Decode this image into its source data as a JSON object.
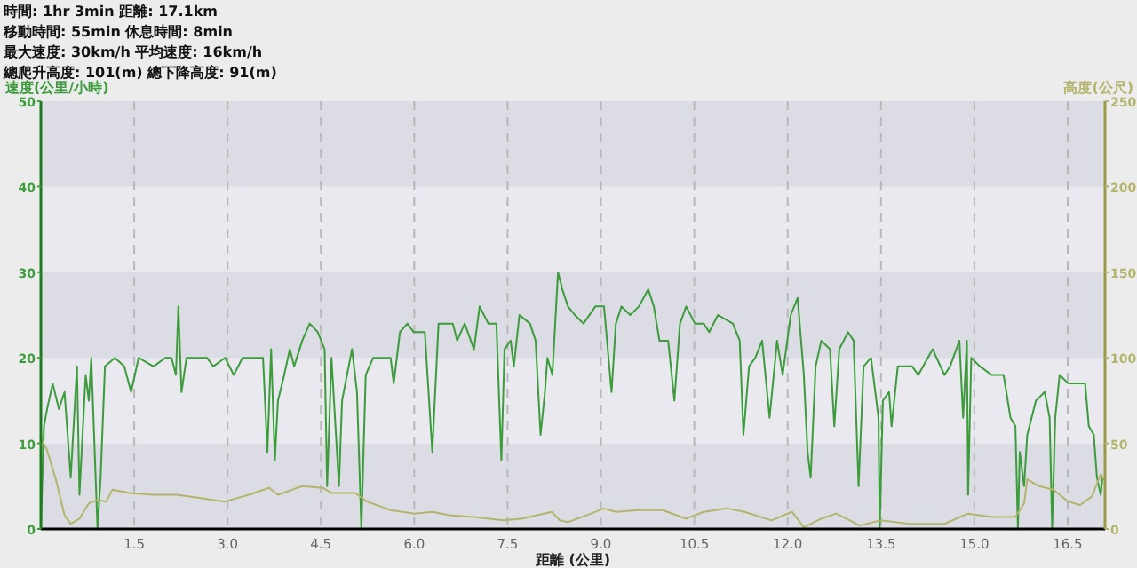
{
  "chart_data": {
    "type": "line",
    "annotations": [
      "時間: 1hr 3min  距離: 17.1km",
      "移動時間: 55min  休息時間: 8min",
      "最大速度: 30km/h  平均速度: 16km/h",
      "總爬升高度: 101(m)  總下降高度: 91(m)"
    ],
    "xlabel": "距離 (公里)",
    "ylabel": "速度(公里/小時)",
    "y2label": "高度(公尺)",
    "xlim": [
      0,
      17.1
    ],
    "xticks": [
      1.5,
      {
        "value": 3,
        "label": "3.0"
      },
      4.5,
      {
        "value": 6,
        "label": "6.0"
      },
      7.5,
      {
        "value": 9,
        "label": "9.0"
      },
      10.5,
      {
        "value": 12,
        "label": "12.0"
      },
      13.5,
      {
        "value": 15,
        "label": "15.0"
      },
      16.5
    ],
    "ylim": [
      0,
      50
    ],
    "yticks": [
      0,
      10,
      20,
      30,
      40,
      50
    ],
    "y2lim": [
      0,
      250
    ],
    "y2ticks": [
      0,
      50,
      100,
      150,
      200,
      250
    ],
    "grid": true,
    "marker": "none",
    "line_style": "solid",
    "series": [
      {
        "color": "#3c9c3c",
        "x": [
          0.0,
          0.05,
          0.1,
          0.19,
          0.29,
          0.38,
          0.48,
          0.58,
          0.62,
          0.72,
          0.77,
          0.81,
          0.89,
          0.91,
          0.96,
          1.03,
          1.19,
          1.34,
          1.45,
          1.57,
          1.81,
          2.0,
          2.1,
          2.17,
          2.21,
          2.26,
          2.34,
          2.67,
          2.77,
          2.96,
          3.1,
          3.24,
          3.57,
          3.64,
          3.7,
          3.76,
          3.81,
          3.91,
          4.0,
          4.07,
          4.2,
          4.32,
          4.45,
          4.56,
          4.6,
          4.67,
          4.79,
          4.84,
          5.0,
          5.08,
          5.15,
          5.22,
          5.34,
          5.62,
          5.67,
          5.77,
          5.89,
          5.99,
          6.17,
          6.29,
          6.39,
          6.62,
          6.69,
          6.81,
          6.96,
          7.05,
          7.19,
          7.32,
          7.4,
          7.45,
          7.55,
          7.6,
          7.69,
          7.86,
          7.95,
          8.03,
          8.1,
          8.14,
          8.22,
          8.31,
          8.38,
          8.47,
          8.58,
          8.72,
          8.91,
          9.05,
          9.17,
          9.24,
          9.33,
          9.47,
          9.61,
          9.76,
          9.85,
          9.94,
          10.08,
          10.18,
          10.27,
          10.37,
          10.51,
          10.65,
          10.74,
          10.88,
          11.12,
          11.23,
          11.29,
          11.38,
          11.48,
          11.59,
          11.71,
          11.83,
          11.92,
          12.05,
          12.16,
          12.26,
          12.32,
          12.37,
          12.45,
          12.54,
          12.68,
          12.75,
          12.83,
          12.97,
          13.06,
          13.14,
          13.22,
          13.34,
          13.46,
          13.48,
          13.53,
          13.63,
          13.67,
          13.77,
          14.0,
          14.1,
          14.33,
          14.52,
          14.61,
          14.76,
          14.82,
          14.88,
          14.9,
          14.95,
          15.09,
          15.28,
          15.47,
          15.58,
          15.66,
          15.7,
          15.73,
          15.8,
          15.85,
          15.99,
          16.13,
          16.21,
          16.25,
          16.3,
          16.37,
          16.51,
          16.78,
          16.84,
          16.92,
          16.97,
          17.03,
          17.06
        ],
        "values": [
          0,
          12,
          14,
          17,
          14,
          16,
          6,
          19,
          4,
          18,
          15,
          20,
          4,
          0,
          6,
          19,
          20,
          19,
          16,
          20,
          19,
          20,
          20,
          18,
          26,
          16,
          20,
          20,
          19,
          20,
          18,
          20,
          20,
          9,
          21,
          8,
          15,
          18,
          21,
          19,
          22,
          24,
          23,
          21,
          5,
          20,
          5,
          15,
          21,
          16,
          0,
          18,
          20,
          20,
          17,
          23,
          24,
          23,
          23,
          9,
          24,
          24,
          22,
          24,
          21,
          26,
          24,
          24,
          8,
          21,
          22,
          19,
          25,
          24,
          22,
          11,
          16,
          20,
          18,
          30,
          28,
          26,
          25,
          24,
          26,
          26,
          16,
          24,
          26,
          25,
          26,
          28,
          26,
          22,
          22,
          15,
          24,
          26,
          24,
          24,
          23,
          25,
          24,
          22,
          11,
          19,
          20,
          22,
          13,
          22,
          18,
          25,
          27,
          18,
          9,
          6,
          19,
          22,
          21,
          12,
          21,
          23,
          22,
          5,
          19,
          20,
          13,
          0,
          15,
          16,
          12,
          19,
          19,
          18,
          21,
          18,
          19,
          22,
          13,
          22,
          4,
          20,
          19,
          18,
          18,
          13,
          12,
          0,
          9,
          5,
          11,
          15,
          16,
          13,
          0,
          13,
          18,
          17,
          17,
          12,
          11,
          6,
          4,
          6
        ]
      },
      {
        "color": "#b4b46c",
        "axis": "y2",
        "x": [
          0.0,
          0.1,
          0.24,
          0.38,
          0.48,
          0.62,
          0.77,
          0.91,
          1.05,
          1.15,
          1.43,
          1.81,
          2.19,
          2.57,
          2.96,
          3.34,
          3.67,
          3.81,
          4.2,
          4.53,
          4.67,
          5.05,
          5.24,
          5.62,
          6.0,
          6.29,
          6.57,
          6.96,
          7.43,
          7.72,
          8.21,
          8.34,
          8.47,
          8.77,
          9.05,
          9.24,
          9.61,
          9.99,
          10.37,
          10.65,
          11.03,
          11.31,
          11.74,
          12.07,
          12.26,
          12.54,
          12.78,
          13.16,
          13.49,
          13.96,
          14.52,
          14.9,
          15.28,
          15.66,
          15.8,
          15.85,
          16.04,
          16.27,
          16.51,
          16.7,
          16.89,
          17.03,
          17.08
        ],
        "values": [
          53,
          46,
          29,
          8,
          3,
          6,
          15,
          17,
          16,
          23,
          21,
          20,
          20,
          18,
          16,
          20,
          24,
          20,
          25,
          24,
          21,
          21,
          16,
          11,
          9,
          10,
          8,
          7,
          5,
          6,
          10,
          5,
          4,
          8,
          12,
          10,
          11,
          11,
          6,
          10,
          12,
          10,
          5,
          10,
          1,
          6,
          9,
          2,
          5,
          3,
          3,
          9,
          7,
          7,
          15,
          29,
          25,
          23,
          16,
          14,
          19,
          32,
          29
        ]
      }
    ]
  }
}
